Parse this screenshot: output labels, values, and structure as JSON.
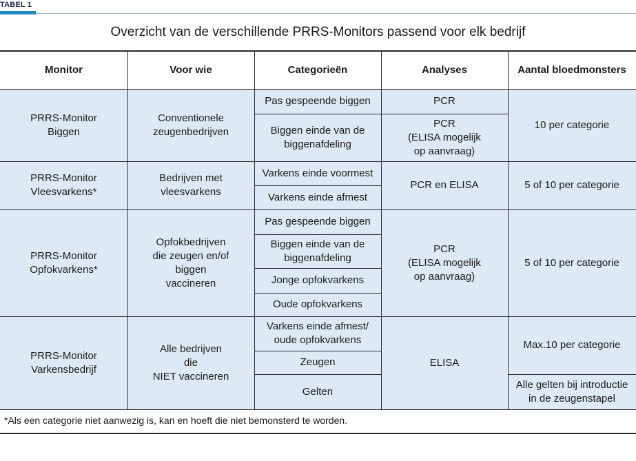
{
  "tag": "TABEL 1",
  "title": "Overzicht van de verschillende PRRS-Monitors passend voor elk bedrijf",
  "headers": [
    "Monitor",
    "Voor wie",
    "Categorieën",
    "Analyses",
    "Aantal bloedmonsters"
  ],
  "groups": [
    {
      "monitor": "PRRS-Monitor\nBiggen",
      "voor_wie": "Conventionele\nzeugenbedrijven",
      "categories": [
        "Pas gespeende biggen",
        "Biggen einde van de\nbiggenafdeling"
      ],
      "analyses": [
        "PCR",
        "PCR\n(ELISA mogelijk\nop aanvraag)"
      ],
      "monsters": [
        "10 per categorie"
      ]
    },
    {
      "monitor": "PRRS-Monitor\nVleesvarkens*",
      "voor_wie": "Bedrijven met\nvleesvarkens",
      "categories": [
        "Varkens einde voormest",
        "Varkens einde afmest"
      ],
      "analyses": [
        "PCR en ELISA"
      ],
      "monsters": [
        "5 of 10 per categorie"
      ]
    },
    {
      "monitor": "PRRS-Monitor\nOpfokvarkens*",
      "voor_wie": "Opfokbedrijven\ndie zeugen en/of\nbiggen\nvaccineren",
      "categories": [
        "Pas gespeende biggen",
        "Biggen einde van de\nbiggenafdeling",
        "Jonge opfokvarkens",
        "Oude opfokvarkens"
      ],
      "analyses": [
        "PCR\n(ELISA mogelijk\nop aanvraag)"
      ],
      "monsters": [
        "5 of 10 per categorie"
      ]
    },
    {
      "monitor": "PRRS-Monitor\nVarkensbedrijf",
      "voor_wie": "Alle bedrijven\ndie\nNIET vaccineren",
      "categories": [
        "Varkens einde afmest/\noude opfokvarkens",
        "Zeugen",
        "Gelten"
      ],
      "analyses": [
        "ELISA"
      ],
      "monsters": [
        "Max.10 per categorie",
        "Alle gelten bij introductie\nin de zeugenstapel"
      ]
    }
  ],
  "footnote": "*Als een categorie niet aanwezig is, kan en hoeft die niet bemonsterd te worden."
}
